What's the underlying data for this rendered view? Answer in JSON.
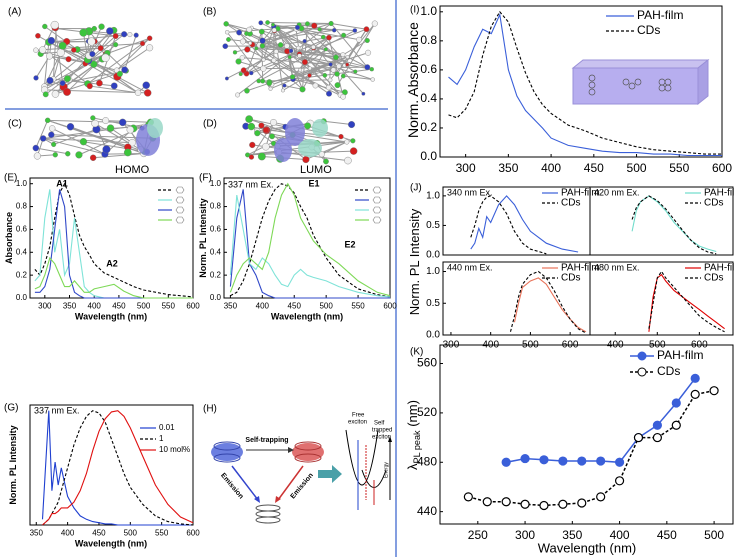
{
  "figure": {
    "panel_labels": {
      "A": "(A)",
      "B": "(B)",
      "C": "(C)",
      "D": "(D)",
      "H": "(H)"
    },
    "homo": "HOMO",
    "lumo": "LUMO",
    "h": {
      "self_trapping": "Self-trapping",
      "emission_left": "Emission",
      "emission_right": "Emission",
      "free_exciton": [
        "Free",
        "exciton"
      ],
      "self_trapped": [
        "Self",
        "trapped",
        "exciton"
      ],
      "energy": "Energy"
    }
  },
  "chart_data": [
    {
      "type": "line",
      "panel_label": "(E)",
      "xlabel": "Wavelength (nm)",
      "ylabel": "Absorbance",
      "annotations": [
        "A1",
        "A2"
      ],
      "x": [
        280,
        290,
        300,
        310,
        320,
        330,
        340,
        350,
        360,
        370,
        380,
        390,
        400,
        420,
        440,
        460,
        480,
        500,
        550,
        600
      ],
      "xlim": [
        270,
        600
      ],
      "xticks": [
        300,
        350,
        400,
        450,
        500,
        550,
        600
      ],
      "ylim": [
        0,
        1.05
      ],
      "yticks": [
        {
          "value": 0,
          "label": "0.0"
        },
        0.2,
        0.4,
        0.6,
        0.8,
        {
          "value": 1,
          "label": "1.0"
        }
      ],
      "legend": "upper right",
      "series": [
        {
          "color": "#000000",
          "linestyle": "dashed",
          "values": [
            0.25,
            0.2,
            0.3,
            0.45,
            0.7,
            0.92,
            1.0,
            0.9,
            0.72,
            0.55,
            0.45,
            0.38,
            0.3,
            0.22,
            0.18,
            0.14,
            0.1,
            0.07,
            0.03,
            0.01
          ]
        },
        {
          "color": "#7fe3d8",
          "linestyle": "solid",
          "values": [
            0.15,
            0.2,
            0.7,
            0.95,
            0.4,
            0.6,
            0.2,
            0.3,
            0.7,
            0.4,
            0.1,
            0.05,
            0.02,
            0,
            0,
            0,
            0,
            0,
            0,
            0
          ]
        },
        {
          "color": "#3048c8",
          "linestyle": "solid",
          "values": [
            0.05,
            0.05,
            0.1,
            0.25,
            0.6,
            0.95,
            0.8,
            0.2,
            0.05,
            0.02,
            0,
            0,
            0,
            0,
            0,
            0,
            0,
            0,
            0,
            0
          ]
        },
        {
          "color": "#7ed957",
          "linestyle": "solid",
          "values": [
            0.08,
            0.1,
            0.2,
            0.35,
            0.3,
            0.2,
            0.1,
            0.1,
            0.15,
            0.1,
            0.05,
            0.05,
            0.08,
            0.1,
            0.12,
            0.06,
            0.02,
            0,
            0,
            0
          ]
        }
      ]
    },
    {
      "type": "line",
      "panel_label": "(F)",
      "xlabel": "Wavelength (nm)",
      "ylabel": "Norm. PL Intensity",
      "annotations": [
        "337 nm Ex.",
        "E1",
        "E2"
      ],
      "x": [
        350,
        360,
        370,
        380,
        390,
        400,
        410,
        420,
        430,
        440,
        450,
        460,
        470,
        480,
        500,
        520,
        550,
        580,
        600
      ],
      "xlim": [
        340,
        600
      ],
      "xticks": [
        350,
        400,
        450,
        500,
        550,
        600
      ],
      "ylim": [
        0,
        1.05
      ],
      "yticks": [
        {
          "value": 0,
          "label": "0.0"
        },
        0.2,
        0.4,
        0.6,
        0.8,
        {
          "value": 1,
          "label": "1.0"
        }
      ],
      "legend": "upper right",
      "series": [
        {
          "color": "#000000",
          "linestyle": "dashed",
          "values": [
            0.02,
            0.05,
            0.15,
            0.3,
            0.5,
            0.7,
            0.85,
            0.95,
            1.0,
            0.98,
            0.92,
            0.8,
            0.7,
            0.55,
            0.35,
            0.2,
            0.08,
            0.03,
            0.01
          ]
        },
        {
          "color": "#3048c8",
          "linestyle": "solid",
          "values": [
            0.1,
            0.7,
            0.95,
            0.3,
            0.2,
            0.05,
            0.02,
            0,
            0,
            0,
            0,
            0,
            0,
            0,
            0,
            0,
            0,
            0,
            0
          ]
        },
        {
          "color": "#7fe3d8",
          "linestyle": "solid",
          "values": [
            0.2,
            0.9,
            0.6,
            0.3,
            0.25,
            0.35,
            0.3,
            0.2,
            0.12,
            0.1,
            0.2,
            0.25,
            0.2,
            0.18,
            0.15,
            0.1,
            0.05,
            0.02,
            0.01
          ]
        },
        {
          "color": "#7ed957",
          "linestyle": "solid",
          "values": [
            0.05,
            0.2,
            0.3,
            0.35,
            0.3,
            0.25,
            0.4,
            0.7,
            0.9,
            1.0,
            0.9,
            0.7,
            0.6,
            0.5,
            0.38,
            0.3,
            0.15,
            0.05,
            0.02
          ]
        }
      ]
    },
    {
      "type": "line",
      "panel_label": "(G)",
      "xlabel": "Wavelength (nm)",
      "ylabel": "Norm. PL Intensity",
      "annotations": [
        "337 nm Ex."
      ],
      "x": [
        360,
        370,
        375,
        380,
        385,
        390,
        400,
        410,
        420,
        430,
        440,
        450,
        460,
        470,
        480,
        490,
        500,
        520,
        540,
        560,
        580,
        600
      ],
      "xlim": [
        340,
        600
      ],
      "xticks": [
        350,
        400,
        450,
        500,
        550,
        600
      ],
      "ylim": [
        0,
        1.05
      ],
      "legend": "upper right",
      "series": [
        {
          "name": "0.01",
          "color": "#2040d0",
          "linestyle": "solid",
          "values": [
            0.05,
            1.0,
            0.3,
            0.55,
            0.35,
            0.5,
            0.25,
            0.15,
            0.08,
            0.05,
            0.03,
            0.02,
            0.01,
            0.01,
            0,
            0,
            0,
            0,
            0,
            0,
            0,
            0
          ]
        },
        {
          "name": "1",
          "color": "#000000",
          "linestyle": "dashed",
          "values": [
            0,
            0.05,
            0.1,
            0.15,
            0.2,
            0.3,
            0.5,
            0.7,
            0.85,
            0.95,
            1.0,
            0.98,
            0.9,
            0.75,
            0.6,
            0.45,
            0.33,
            0.18,
            0.08,
            0.03,
            0.01,
            0
          ]
        },
        {
          "name": "10 mol%",
          "color": "#e01010",
          "linestyle": "solid",
          "values": [
            0,
            0.05,
            0.1,
            0.1,
            0.12,
            0.15,
            0.15,
            0.2,
            0.3,
            0.45,
            0.65,
            0.82,
            0.93,
            0.99,
            1.0,
            0.95,
            0.85,
            0.6,
            0.35,
            0.18,
            0.07,
            0.02
          ]
        }
      ]
    },
    {
      "type": "line",
      "panel_label": "(I)",
      "ylabel": "Norm. Absorbance",
      "x": [
        280,
        290,
        300,
        310,
        320,
        330,
        340,
        350,
        360,
        370,
        380,
        390,
        400,
        420,
        440,
        460,
        480,
        500,
        520,
        540,
        560,
        580,
        600
      ],
      "xlim": [
        270,
        600
      ],
      "xticks": [
        300,
        350,
        400,
        450,
        500,
        550,
        600
      ],
      "ylim": [
        0,
        1.04
      ],
      "yticks": [
        {
          "value": 0,
          "label": "0.0"
        },
        0.2,
        0.4,
        0.6,
        0.8,
        {
          "value": 1,
          "label": "1.0"
        }
      ],
      "legend": "upper right",
      "series": [
        {
          "name": "PAH-film",
          "color": "#3a5fd9",
          "linestyle": "solid",
          "values": [
            0.55,
            0.5,
            0.6,
            0.76,
            0.88,
            0.85,
            0.98,
            0.6,
            0.42,
            0.32,
            0.26,
            0.2,
            0.13,
            0.08,
            0.06,
            0.04,
            0.03,
            0.03,
            0.02,
            0.02,
            0.01,
            0.01,
            0.01
          ]
        },
        {
          "name": "CDs",
          "color": "#000000",
          "linestyle": "dashed",
          "values": [
            0.29,
            0.27,
            0.33,
            0.45,
            0.7,
            0.9,
            1.0,
            0.93,
            0.75,
            0.58,
            0.45,
            0.36,
            0.3,
            0.22,
            0.18,
            0.13,
            0.1,
            0.07,
            0.05,
            0.04,
            0.03,
            0.02,
            0.02
          ]
        }
      ]
    },
    {
      "type": "line",
      "panel_label": "(J)",
      "ylabel": "Norm. PL Intensity",
      "annotations": [
        "340 nm Ex."
      ],
      "x": [
        350,
        360,
        370,
        380,
        390,
        400,
        420,
        440,
        460,
        480,
        500,
        540,
        580,
        620
      ],
      "xlim": [
        280,
        650
      ],
      "ylim": [
        0,
        1.15
      ],
      "yticks": [
        {
          "value": 0,
          "label": "0.0"
        },
        0.5,
        {
          "value": 1,
          "label": "1.0"
        }
      ],
      "legend": "upper right",
      "series": [
        {
          "name": "PAH-film",
          "color": "#3a5fd9",
          "linestyle": "solid",
          "values": [
            0.1,
            0.2,
            0.45,
            0.3,
            0.65,
            0.55,
            0.85,
            1.0,
            0.85,
            0.6,
            0.4,
            0.2,
            0.1,
            0.05
          ]
        },
        {
          "name": "CDs",
          "color": "#000000",
          "linestyle": "dashed",
          "values": [
            0.3,
            0.5,
            0.75,
            0.9,
            0.98,
            1.0,
            0.9,
            0.7,
            0.4,
            0.2,
            0.1,
            0.02,
            null,
            null
          ]
        }
      ]
    },
    {
      "type": "line",
      "annotations": [
        "420 nm Ex."
      ],
      "x": [
        440,
        450,
        460,
        470,
        480,
        500,
        520,
        540,
        560,
        580,
        600,
        620,
        640
      ],
      "xlim": [
        340,
        680
      ],
      "ylim": [
        0,
        1.15
      ],
      "legend": "upper right",
      "series": [
        {
          "name": "PAH-film",
          "color": "#6fdccb",
          "linestyle": "solid",
          "values": [
            0.4,
            0.75,
            0.9,
            0.95,
            1.0,
            0.9,
            0.75,
            0.55,
            0.4,
            0.25,
            0.15,
            0.1,
            0.06
          ]
        },
        {
          "name": "CDs",
          "color": "#000000",
          "linestyle": "dashed",
          "values": [
            0.6,
            0.8,
            0.9,
            0.95,
            1.0,
            0.92,
            0.78,
            0.6,
            0.42,
            0.25,
            0.12,
            0.05,
            0.02
          ]
        }
      ]
    },
    {
      "type": "line",
      "annotations": [
        "440 nm Ex."
      ],
      "x": [
        450,
        460,
        470,
        480,
        500,
        520,
        540,
        560,
        580,
        600,
        620,
        640
      ],
      "xlim": [
        280,
        650
      ],
      "xticks": [
        300,
        400,
        500,
        600
      ],
      "ylim": [
        0,
        1.15
      ],
      "yticks": [
        {
          "value": 0,
          "label": "0.0"
        },
        0.5,
        {
          "value": 1,
          "label": "1.0"
        }
      ],
      "legend": "upper right",
      "series": [
        {
          "name": "PAH-film",
          "color": "#e8735a",
          "linestyle": "solid",
          "values": [
            null,
            0.2,
            0.5,
            0.75,
            0.85,
            0.9,
            0.8,
            0.6,
            0.4,
            0.25,
            0.12,
            0.05
          ]
        },
        {
          "name": "CDs",
          "color": "#000000",
          "linestyle": "dashed",
          "values": [
            0.05,
            0.3,
            0.6,
            0.8,
            0.95,
            1.0,
            0.9,
            0.7,
            0.45,
            0.25,
            0.1,
            0.03
          ]
        }
      ]
    },
    {
      "type": "line",
      "annotations": [
        "480 nm Ex."
      ],
      "x": [
        480,
        490,
        500,
        510,
        520,
        540,
        560,
        580,
        600,
        620,
        640,
        660
      ],
      "xlim": [
        340,
        680
      ],
      "xticks": [
        400,
        500,
        600
      ],
      "ylim": [
        0,
        1.15
      ],
      "legend": "upper right",
      "series": [
        {
          "name": "PAH-film",
          "color": "#e00000",
          "linestyle": "solid",
          "values": [
            0.05,
            0.6,
            0.9,
            0.95,
            0.85,
            0.7,
            0.6,
            0.5,
            0.4,
            0.3,
            0.2,
            0.1
          ]
        },
        {
          "name": "CDs",
          "color": "#000000",
          "linestyle": "dashed",
          "values": [
            0.1,
            0.5,
            0.9,
            1.0,
            0.9,
            0.75,
            0.6,
            0.45,
            0.3,
            0.2,
            0.12,
            0.05
          ]
        }
      ]
    },
    {
      "type": "line",
      "panel_label": "(K)",
      "xlabel": "Wavelength (nm)",
      "ylabel": "λ",
      "ylabel_sub": "PL peak",
      "ylabel_unit": "(nm)",
      "x": [
        240,
        260,
        280,
        300,
        320,
        340,
        360,
        380,
        400,
        420,
        440,
        460,
        480,
        500
      ],
      "xlim": [
        210,
        520
      ],
      "xticks": [
        250,
        300,
        350,
        400,
        450,
        500
      ],
      "ylim": [
        430,
        575
      ],
      "yticks": [
        440,
        480,
        520,
        560
      ],
      "legend": "upper right",
      "series": [
        {
          "name": "PAH-film",
          "color": "#3a5fd9",
          "linestyle": "solid",
          "marker": "o",
          "filled": true,
          "values": [
            null,
            null,
            480,
            483,
            482,
            481,
            481,
            481,
            480,
            500,
            510,
            528,
            548,
            null
          ]
        },
        {
          "name": "CDs",
          "color": "#000000",
          "linestyle": "dashed",
          "marker": "o",
          "filled": false,
          "values": [
            452,
            448,
            448,
            446,
            445,
            446,
            447,
            452,
            465,
            500,
            500,
            510,
            535,
            538
          ]
        }
      ]
    }
  ]
}
